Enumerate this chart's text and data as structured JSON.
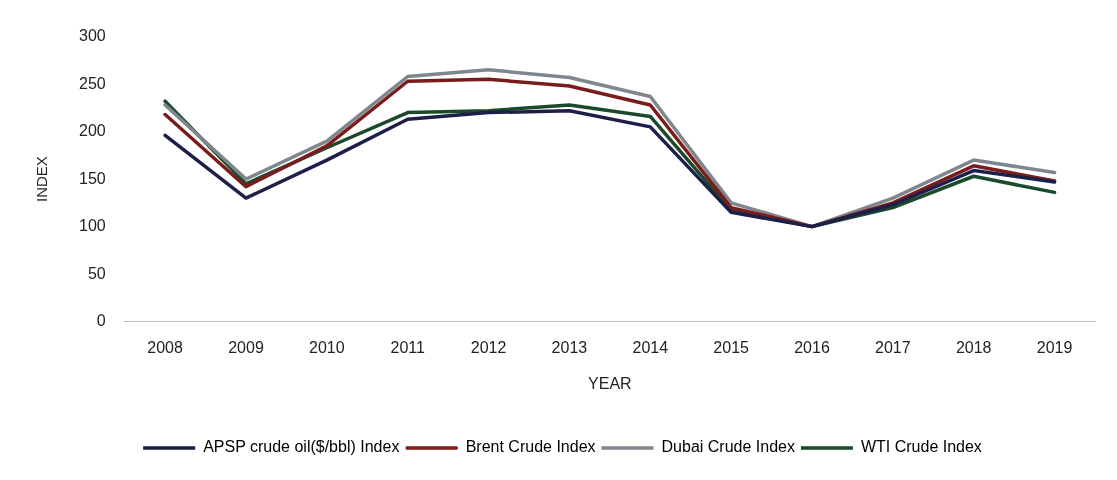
{
  "chart_data": {
    "type": "line",
    "xlabel": "YEAR",
    "ylabel": "INDEX",
    "categories": [
      "2008",
      "2009",
      "2010",
      "2011",
      "2012",
      "2013",
      "2014",
      "2015",
      "2016",
      "2017",
      "2018",
      "2019"
    ],
    "series": [
      {
        "name": "APSP crude oil($/bbl) Index",
        "color": "#1c1f4a",
        "values": [
          196,
          130,
          170,
          213,
          220,
          222,
          205,
          115,
          100,
          123,
          159,
          147
        ]
      },
      {
        "name": "Brent Crude Index",
        "color": "#7a1c1c",
        "values": [
          218,
          142,
          185,
          253,
          255,
          248,
          228,
          120,
          100,
          125,
          164,
          148
        ]
      },
      {
        "name": "Dubai Crude Index",
        "color": "#7f868e",
        "values": [
          228,
          150,
          190,
          258,
          265,
          257,
          237,
          125,
          100,
          130,
          170,
          157
        ]
      },
      {
        "name": "WTI Crude Index",
        "color": "#1b4a2b",
        "values": [
          232,
          145,
          183,
          220,
          222,
          228,
          216,
          117,
          100,
          120,
          153,
          136
        ]
      }
    ],
    "ylim": [
      0,
      300
    ],
    "yticks": [
      0,
      50,
      100,
      150,
      200,
      250,
      300
    ],
    "grid": false,
    "legend": "bottom",
    "marker": "none"
  }
}
